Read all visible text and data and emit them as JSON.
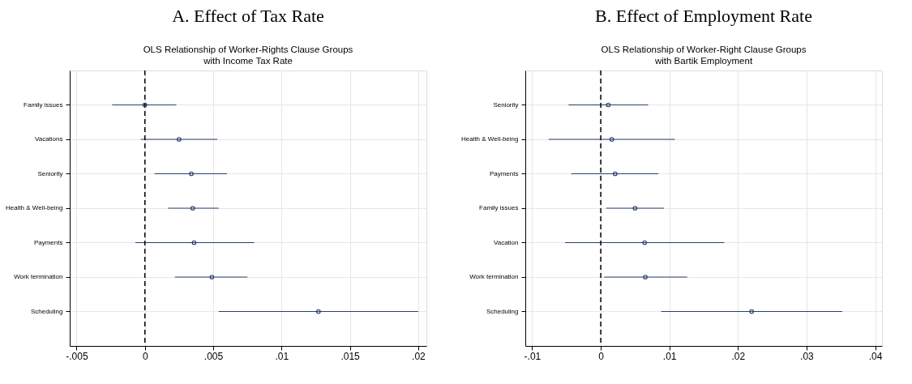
{
  "chart_data": [
    {
      "type": "scatter",
      "orientation": "horizontal",
      "title": "A. Effect of Tax Rate",
      "subtitle": "OLS Relationship of Worker-Rights Clause Groups\nwith Income Tax Rate",
      "categories": [
        "Family issues",
        "Vacations",
        "Seniority",
        "Health & Well-being",
        "Payments",
        "Work termination",
        "Scheduling"
      ],
      "series": [
        {
          "color": "#2b3f6e",
          "values": [
            0.0,
            0.0025,
            0.0034,
            0.0035,
            0.0036,
            0.0049,
            0.0127
          ],
          "errors": [
            [
              -0.0024,
              0.0023
            ],
            [
              -0.0003,
              0.0053
            ],
            [
              0.0007,
              0.006
            ],
            [
              0.0017,
              0.0054
            ],
            [
              -0.0007,
              0.008
            ],
            [
              0.0022,
              0.0075
            ],
            [
              0.0054,
              0.02
            ]
          ]
        }
      ],
      "xlim": [
        -0.0055,
        0.0206
      ],
      "xticks": [
        {
          "value": -0.005,
          "label": "-.005"
        },
        0,
        {
          "value": 0.005,
          "label": ".005"
        },
        {
          "value": 0.01,
          "label": ".01"
        },
        {
          "value": 0.015,
          "label": ".015"
        },
        {
          "value": 0.02,
          "label": ".02"
        }
      ],
      "ref_lines": [
        {
          "axis": "x",
          "value": 0,
          "color": "#000000",
          "line_style": "dashed"
        }
      ],
      "grid": true,
      "marker": "circle"
    },
    {
      "type": "scatter",
      "orientation": "horizontal",
      "title": "B. Effect of Employment Rate",
      "subtitle": "OLS Relationship of Worker-Right Clause Groups\nwith Bartik Employment",
      "categories": [
        "Seniority",
        "Health & Well-being",
        "Payments",
        "Family issues",
        "Vacation",
        "Work termination",
        "Scheduling"
      ],
      "series": [
        {
          "color": "#2b3f6e",
          "values": [
            0.0011,
            0.0016,
            0.0021,
            0.005,
            0.0064,
            0.0065,
            0.022
          ],
          "errors": [
            [
              -0.0047,
              0.0069
            ],
            [
              -0.0076,
              0.0108
            ],
            [
              -0.0043,
              0.0084
            ],
            [
              0.0008,
              0.0092
            ],
            [
              -0.0052,
              0.018
            ],
            [
              0.0005,
              0.0126
            ],
            [
              0.0088,
              0.0352
            ]
          ]
        }
      ],
      "xlim": [
        -0.011,
        0.041
      ],
      "xticks": [
        {
          "value": -0.01,
          "label": "-.01"
        },
        0,
        {
          "value": 0.01,
          "label": ".01"
        },
        {
          "value": 0.02,
          "label": ".02"
        },
        {
          "value": 0.03,
          "label": ".03"
        },
        {
          "value": 0.04,
          "label": ".04"
        }
      ],
      "ref_lines": [
        {
          "axis": "x",
          "value": 0,
          "color": "#000000",
          "line_style": "dashed"
        }
      ],
      "grid": true,
      "marker": "circle"
    }
  ]
}
